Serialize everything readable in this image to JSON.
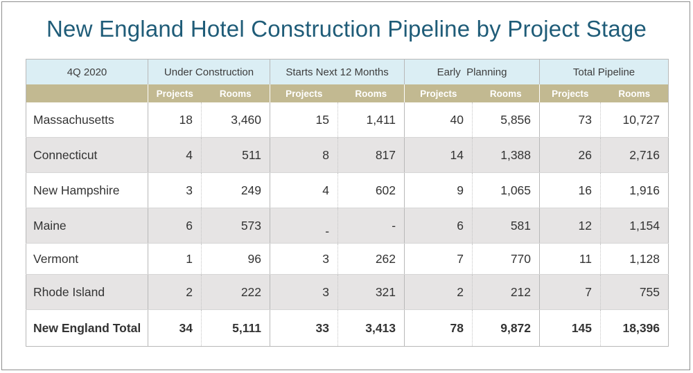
{
  "title": "New England Hotel Construction Pipeline by Project Stage",
  "header": {
    "period": "4Q 2020",
    "groups": [
      "Under Construction",
      "Starts Next 12 Months",
      "Early  Planning",
      "Total Pipeline"
    ],
    "projects_label": "Projects",
    "rooms_label": "Rooms"
  },
  "rows": [
    {
      "state": "Massachusetts",
      "uc_projects": "18",
      "uc_rooms": "3,460",
      "sn_projects": "15",
      "sn_rooms": "1,411",
      "ep_projects": "40",
      "ep_rooms": "5,856",
      "tp_projects": "73",
      "tp_rooms": "10,727"
    },
    {
      "state": "Connecticut",
      "uc_projects": "4",
      "uc_rooms": "511",
      "sn_projects": "8",
      "sn_rooms": "817",
      "ep_projects": "14",
      "ep_rooms": "1,388",
      "tp_projects": "26",
      "tp_rooms": "2,716"
    },
    {
      "state": "New Hampshire",
      "uc_projects": "3",
      "uc_rooms": "249",
      "sn_projects": "4",
      "sn_rooms": "602",
      "ep_projects": "9",
      "ep_rooms": "1,065",
      "tp_projects": "16",
      "tp_rooms": "1,916"
    },
    {
      "state": "Maine",
      "uc_projects": "6",
      "uc_rooms": "573",
      "sn_projects": "-",
      "sn_rooms": "-",
      "ep_projects": "6",
      "ep_rooms": "581",
      "tp_projects": "12",
      "tp_rooms": "1,154"
    },
    {
      "state": "Vermont",
      "uc_projects": "1",
      "uc_rooms": "96",
      "sn_projects": "3",
      "sn_rooms": "262",
      "ep_projects": "7",
      "ep_rooms": "770",
      "tp_projects": "11",
      "tp_rooms": "1,128"
    },
    {
      "state": "Rhode Island",
      "uc_projects": "2",
      "uc_rooms": "222",
      "sn_projects": "3",
      "sn_rooms": "321",
      "ep_projects": "2",
      "ep_rooms": "212",
      "tp_projects": "7",
      "tp_rooms": "755"
    }
  ],
  "total": {
    "state": "New England Total",
    "uc_projects": "34",
    "uc_rooms": "5,111",
    "sn_projects": "33",
    "sn_rooms": "3,413",
    "ep_projects": "78",
    "ep_rooms": "9,872",
    "tp_projects": "145",
    "tp_rooms": "18,396"
  },
  "colors": {
    "title": "#1f5c78",
    "header_band": "#dbeef4",
    "subheader_band": "#c2b991",
    "alt_row": "#e6e4e4"
  }
}
